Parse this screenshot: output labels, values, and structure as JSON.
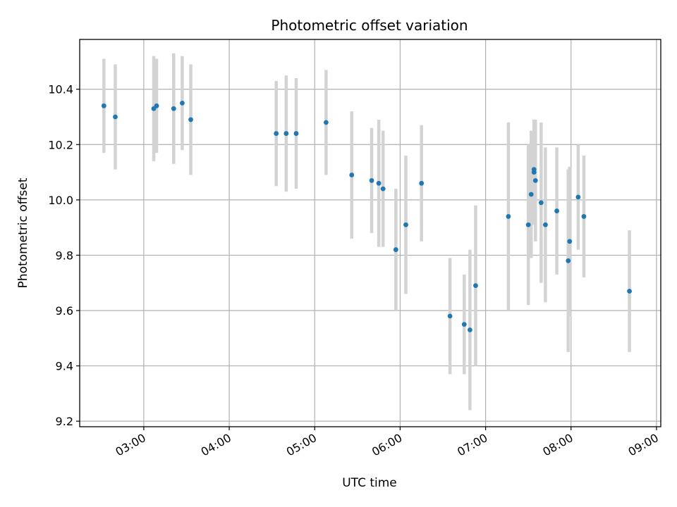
{
  "chart_data": {
    "type": "scatter",
    "title": "Photometric offset variation",
    "xlabel": "UTC time",
    "ylabel": "Photometric offset",
    "grid": true,
    "xlim": [
      "02:15",
      "09:03"
    ],
    "ylim": [
      9.18,
      10.58
    ],
    "x_ticks": [
      "03:00",
      "04:00",
      "05:00",
      "06:00",
      "07:00",
      "08:00",
      "09:00"
    ],
    "y_ticks": [
      "9.2",
      "9.4",
      "9.6",
      "9.8",
      "10.0",
      "10.2",
      "10.4"
    ],
    "colors": {
      "point": "#1f77b4",
      "errorbar": "#d3d3d3",
      "grid": "#b0b0b0"
    },
    "series": [
      {
        "points": [
          {
            "x": "02:32",
            "y": 10.34,
            "err": 0.17
          },
          {
            "x": "02:40",
            "y": 10.3,
            "err": 0.19
          },
          {
            "x": "03:07",
            "y": 10.33,
            "err": 0.19
          },
          {
            "x": "03:09",
            "y": 10.34,
            "err": 0.17
          },
          {
            "x": "03:21",
            "y": 10.33,
            "err": 0.2
          },
          {
            "x": "03:27",
            "y": 10.35,
            "err": 0.17
          },
          {
            "x": "03:33",
            "y": 10.29,
            "err": 0.2
          },
          {
            "x": "04:33",
            "y": 10.24,
            "err": 0.19
          },
          {
            "x": "04:40",
            "y": 10.24,
            "err": 0.21
          },
          {
            "x": "04:47",
            "y": 10.24,
            "err": 0.2
          },
          {
            "x": "05:08",
            "y": 10.28,
            "err": 0.19
          },
          {
            "x": "05:26",
            "y": 10.09,
            "err": 0.23
          },
          {
            "x": "05:40",
            "y": 10.07,
            "err": 0.19
          },
          {
            "x": "05:45",
            "y": 10.06,
            "err": 0.23
          },
          {
            "x": "05:48",
            "y": 10.04,
            "err": 0.21
          },
          {
            "x": "05:57",
            "y": 9.82,
            "err": 0.22
          },
          {
            "x": "06:04",
            "y": 9.91,
            "err": 0.25
          },
          {
            "x": "06:15",
            "y": 10.06,
            "err": 0.21
          },
          {
            "x": "06:35",
            "y": 9.58,
            "err": 0.21
          },
          {
            "x": "06:45",
            "y": 9.55,
            "err": 0.18
          },
          {
            "x": "06:49",
            "y": 9.53,
            "err": 0.29
          },
          {
            "x": "06:53",
            "y": 9.69,
            "err": 0.29
          },
          {
            "x": "07:16",
            "y": 9.94,
            "err": 0.34
          },
          {
            "x": "07:30",
            "y": 9.91,
            "err": 0.29
          },
          {
            "x": "07:32",
            "y": 10.02,
            "err": 0.23
          },
          {
            "x": "07:34",
            "y": 10.11,
            "err": 0.18
          },
          {
            "x": "07:34",
            "y": 10.1,
            "err": 0.19
          },
          {
            "x": "07:35",
            "y": 10.07,
            "err": 0.22
          },
          {
            "x": "07:39",
            "y": 9.99,
            "err": 0.29
          },
          {
            "x": "07:42",
            "y": 9.91,
            "err": 0.28
          },
          {
            "x": "07:50",
            "y": 9.96,
            "err": 0.23
          },
          {
            "x": "07:58",
            "y": 9.78,
            "err": 0.33
          },
          {
            "x": "07:59",
            "y": 9.85,
            "err": 0.27
          },
          {
            "x": "08:05",
            "y": 10.01,
            "err": 0.19
          },
          {
            "x": "08:09",
            "y": 9.94,
            "err": 0.22
          },
          {
            "x": "08:41",
            "y": 9.67,
            "err": 0.22
          }
        ]
      }
    ]
  }
}
